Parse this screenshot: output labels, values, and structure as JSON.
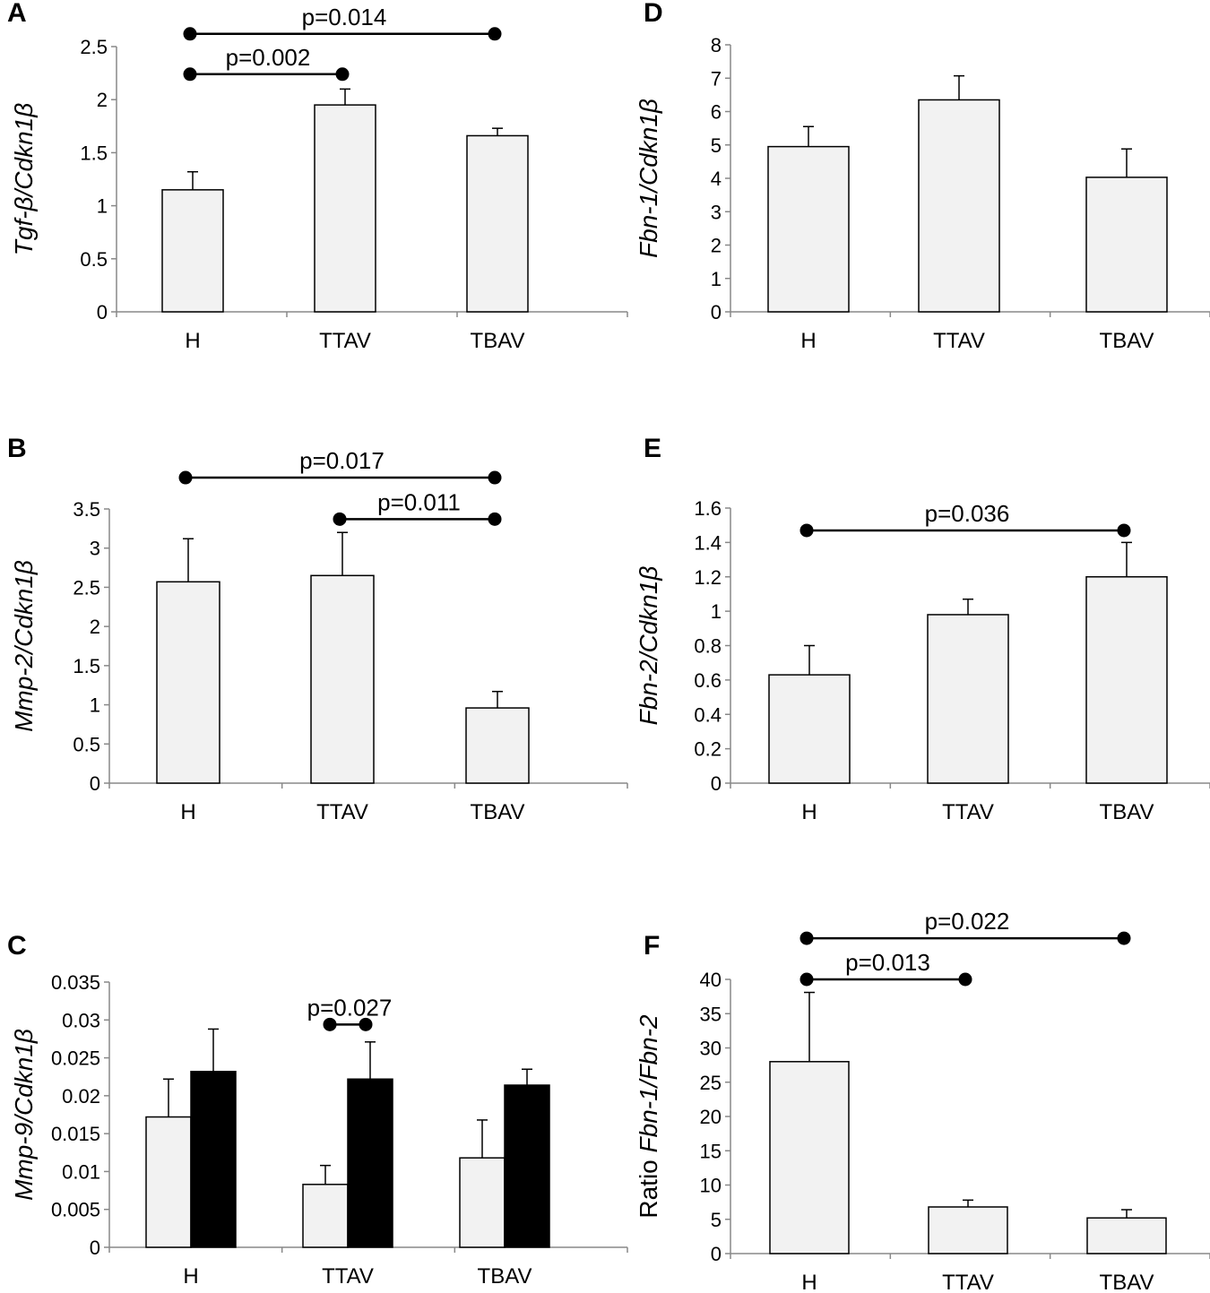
{
  "chart_data": [
    {
      "panel": "A",
      "type": "bar",
      "ylabel": "Tgf-β/Cdkn1β",
      "ylabel_italic": "Tgf-β/Cdkn1β",
      "ylabel_prefix": "",
      "ylim": [
        0,
        2.5
      ],
      "yticks": [
        "0",
        "0.5",
        "1",
        "1.5",
        "2",
        "2.5"
      ],
      "categories": [
        "H",
        "TTAV",
        "TBAV"
      ],
      "series": [
        {
          "name": "series1",
          "color": "#f2f2f2",
          "values": [
            1.15,
            1.95,
            1.66
          ],
          "errors": [
            0.17,
            0.15,
            0.07
          ]
        }
      ],
      "comparisons": [
        {
          "label": "p=0.002",
          "from": 0,
          "to": 1,
          "y": 2.24
        },
        {
          "label": "p=0.014",
          "from": 0,
          "to": 2,
          "y": 2.62
        }
      ]
    },
    {
      "panel": "B",
      "type": "bar",
      "ylabel": "Mmp-2/Cdkn1β",
      "ylabel_italic": "Mmp-2/Cdkn1β",
      "ylabel_prefix": "",
      "ylim": [
        0,
        3.5
      ],
      "yticks": [
        "0",
        "0.5",
        "1",
        "1.5",
        "2",
        "2.5",
        "3",
        "3.5"
      ],
      "categories": [
        "H",
        "TTAV",
        "TBAV"
      ],
      "series": [
        {
          "name": "series1",
          "color": "#f2f2f2",
          "values": [
            2.57,
            2.65,
            0.96
          ],
          "errors": [
            0.55,
            0.55,
            0.21
          ]
        }
      ],
      "comparisons": [
        {
          "label": "p=0.017",
          "from": 0,
          "to": 2,
          "y": 3.9
        },
        {
          "label": "p=0.011",
          "from": 1,
          "to": 2,
          "y": 3.37
        }
      ]
    },
    {
      "panel": "C",
      "type": "bar",
      "ylabel": "Mmp-9/Cdkn1β",
      "ylabel_italic": "Mmp-9/Cdkn1β",
      "ylabel_prefix": "",
      "ylim": [
        0,
        0.035
      ],
      "yticks": [
        "0",
        "0.005",
        "0.01",
        "0.015",
        "0.02",
        "0.025",
        "0.03",
        "0.035"
      ],
      "categories": [
        "H",
        "TTAV",
        "TBAV"
      ],
      "series": [
        {
          "name": "series1",
          "color": "#f2f2f2",
          "values": [
            0.0172,
            0.0083,
            0.0118
          ],
          "errors": [
            0.005,
            0.0025,
            0.005
          ]
        },
        {
          "name": "series2",
          "color": "#000000",
          "values": [
            0.0232,
            0.0222,
            0.0214
          ],
          "errors": [
            0.0056,
            0.0049,
            0.0021
          ]
        }
      ],
      "comparisons": [
        {
          "label": "p=0.027",
          "from": 1,
          "to": 1,
          "y": 0.0294
        }
      ]
    },
    {
      "panel": "D",
      "type": "bar",
      "ylabel": "Fbn-1/Cdkn1β",
      "ylabel_italic": "Fbn-1/Cdkn1β",
      "ylabel_prefix": "",
      "ylim": [
        0,
        8
      ],
      "yticks": [
        "0",
        "1",
        "2",
        "3",
        "4",
        "5",
        "6",
        "7",
        "8"
      ],
      "categories": [
        "H",
        "TTAV",
        "TBAV"
      ],
      "series": [
        {
          "name": "series1",
          "color": "#f2f2f2",
          "values": [
            4.95,
            6.35,
            4.03
          ],
          "errors": [
            0.6,
            0.72,
            0.85
          ]
        }
      ],
      "comparisons": []
    },
    {
      "panel": "E",
      "type": "bar",
      "ylabel": "Fbn-2/Cdkn1β",
      "ylabel_italic": "Fbn-2/Cdkn1β",
      "ylabel_prefix": "",
      "ylim": [
        0,
        1.6
      ],
      "yticks": [
        "0",
        "0.2",
        "0.4",
        "0.6",
        "0.8",
        "1",
        "1.2",
        "1.4",
        "1.6"
      ],
      "categories": [
        "H",
        "TTAV",
        "TBAV"
      ],
      "series": [
        {
          "name": "series1",
          "color": "#f2f2f2",
          "values": [
            0.63,
            0.98,
            1.2
          ],
          "errors": [
            0.17,
            0.09,
            0.2
          ]
        }
      ],
      "comparisons": [
        {
          "label": "p=0.036",
          "from": 0,
          "to": 2,
          "y": 1.47
        }
      ]
    },
    {
      "panel": "F",
      "type": "bar",
      "ylabel": "Ratio Fbn-1/Fbn-2",
      "ylabel_italic": "Fbn-1/Fbn-2",
      "ylabel_prefix": "Ratio ",
      "ylim": [
        0,
        40
      ],
      "yticks": [
        "0",
        "5",
        "10",
        "15",
        "20",
        "25",
        "30",
        "35",
        "40"
      ],
      "categories": [
        "H",
        "TTAV",
        "TBAV"
      ],
      "series": [
        {
          "name": "series1",
          "color": "#f2f2f2",
          "values": [
            28,
            6.8,
            5.2
          ],
          "errors": [
            10.1,
            1.0,
            1.2
          ]
        }
      ],
      "comparisons": [
        {
          "label": "p=0.013",
          "from": 0,
          "to": 1,
          "y": 40
        },
        {
          "label": "p=0.022",
          "from": 0,
          "to": 2,
          "y": 46
        }
      ]
    }
  ]
}
